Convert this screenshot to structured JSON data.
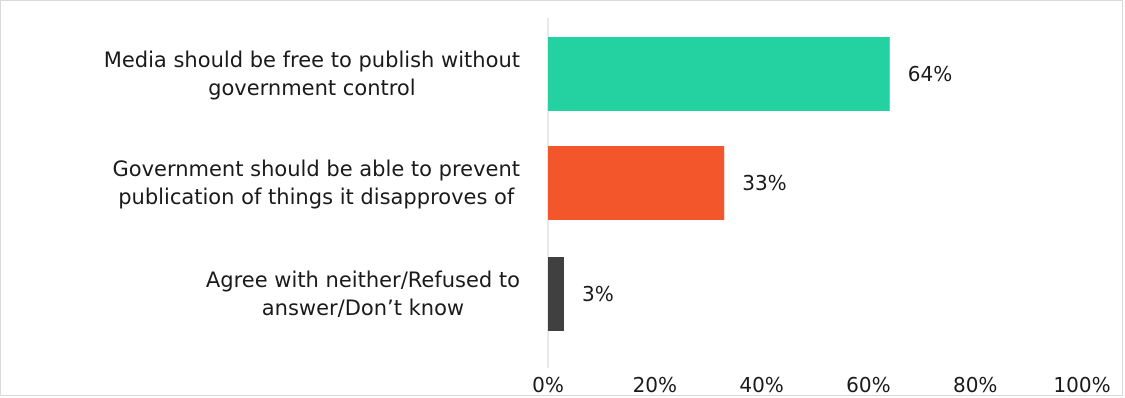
{
  "chart_data": {
    "type": "bar",
    "orientation": "horizontal",
    "categories": [
      [
        "Media should be free to publish without",
        "government control"
      ],
      [
        "Government should be able to prevent",
        "publication of things it disapproves of"
      ],
      [
        "Agree with neither/Refused to",
        "answer/Don’t know"
      ]
    ],
    "values": [
      64,
      33,
      3
    ],
    "data_labels": [
      "64%",
      "33%",
      "3%"
    ],
    "colors": [
      "#23d1a1",
      "#f2562a",
      "#404040"
    ],
    "xlim": [
      0,
      100
    ],
    "x_ticks": [
      "0%",
      "20%",
      "40%",
      "60%",
      "80%",
      "100%"
    ],
    "grid": false,
    "legend": "none",
    "title": "",
    "xlabel": "",
    "ylabel": ""
  }
}
